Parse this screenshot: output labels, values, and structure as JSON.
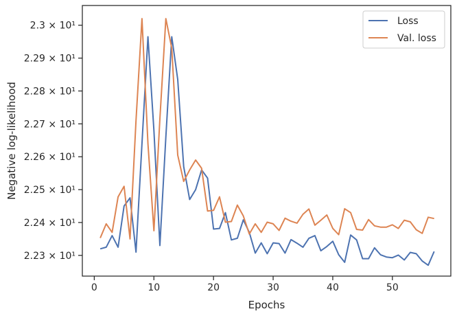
{
  "chart_data": {
    "type": "line",
    "title": "",
    "xlabel": "Epochs",
    "ylabel": "Negative log-likelihood",
    "xlim": [
      -2,
      59.8
    ],
    "ylim": [
      22.237,
      23.06
    ],
    "x_ticks": [
      0,
      10,
      20,
      30,
      40,
      50
    ],
    "y_ticks": [
      {
        "value": 22.3,
        "label": "2.23 × 10¹"
      },
      {
        "value": 22.4,
        "label": "2.24 × 10¹"
      },
      {
        "value": 22.5,
        "label": "2.25 × 10¹"
      },
      {
        "value": 22.6,
        "label": "2.26 × 10¹"
      },
      {
        "value": 22.7,
        "label": "2.27 × 10¹"
      },
      {
        "value": 22.8,
        "label": "2.28 × 10¹"
      },
      {
        "value": 22.9,
        "label": "2.29 × 10¹"
      },
      {
        "value": 23.0,
        "label": "2.3 × 10¹"
      }
    ],
    "grid": false,
    "legend_position": "top-right",
    "x": [
      1,
      2,
      3,
      4,
      5,
      6,
      7,
      8,
      9,
      10,
      11,
      12,
      13,
      14,
      15,
      16,
      17,
      18,
      19,
      20,
      21,
      22,
      23,
      24,
      25,
      26,
      27,
      28,
      29,
      30,
      31,
      32,
      33,
      34,
      35,
      36,
      37,
      38,
      39,
      40,
      41,
      42,
      43,
      44,
      45,
      46,
      47,
      48,
      49,
      50,
      51,
      52,
      53,
      54,
      55,
      56,
      57
    ],
    "series": [
      {
        "name": "Loss",
        "color": "#4c72b0",
        "values": [
          22.32,
          22.325,
          22.36,
          22.325,
          22.45,
          22.475,
          22.31,
          22.64,
          22.965,
          22.68,
          22.33,
          22.66,
          22.965,
          22.835,
          22.57,
          22.47,
          22.5,
          22.56,
          22.535,
          22.38,
          22.382,
          22.43,
          22.347,
          22.352,
          22.408,
          22.37,
          22.307,
          22.338,
          22.305,
          22.338,
          22.336,
          22.307,
          22.348,
          22.337,
          22.325,
          22.352,
          22.36,
          22.314,
          22.327,
          22.343,
          22.302,
          22.279,
          22.362,
          22.347,
          22.29,
          22.29,
          22.323,
          22.302,
          22.295,
          22.293,
          22.301,
          22.286,
          22.309,
          22.305,
          22.283,
          22.27,
          22.312
        ]
      },
      {
        "name": "Val. loss",
        "color": "#dd8452",
        "values": [
          22.353,
          22.396,
          22.37,
          22.478,
          22.51,
          22.35,
          22.71,
          23.02,
          22.64,
          22.375,
          22.715,
          23.02,
          22.93,
          22.605,
          22.525,
          22.56,
          22.59,
          22.565,
          22.435,
          22.437,
          22.478,
          22.401,
          22.403,
          22.453,
          22.42,
          22.365,
          22.396,
          22.37,
          22.401,
          22.396,
          22.376,
          22.413,
          22.404,
          22.398,
          22.425,
          22.441,
          22.392,
          22.407,
          22.423,
          22.382,
          22.363,
          22.442,
          22.43,
          22.379,
          22.377,
          22.409,
          22.39,
          22.386,
          22.386,
          22.393,
          22.382,
          22.407,
          22.402,
          22.378,
          22.367,
          22.416,
          22.412
        ]
      }
    ]
  }
}
